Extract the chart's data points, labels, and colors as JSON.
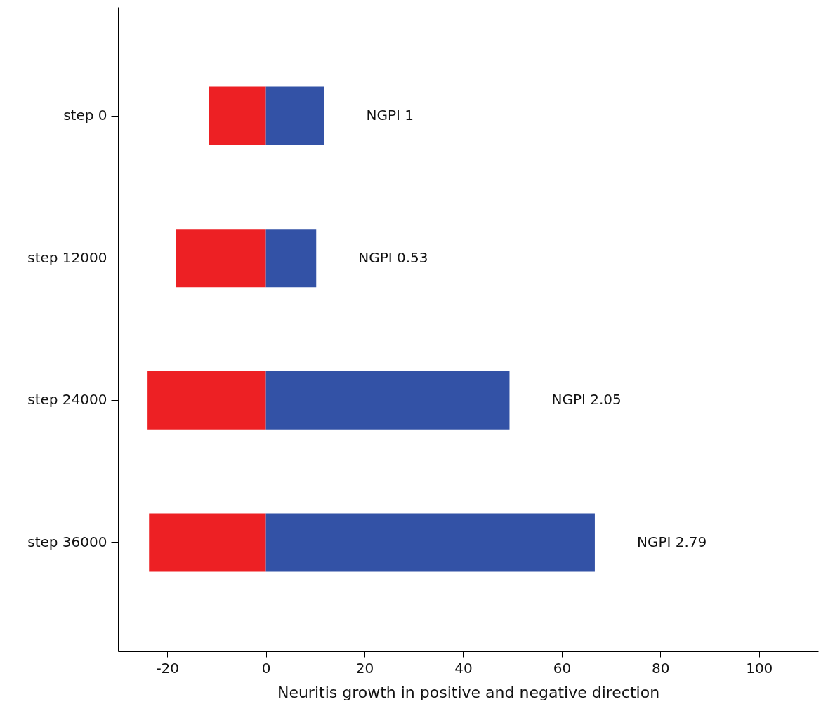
{
  "chart_data": {
    "type": "bar",
    "orientation": "horizontal",
    "stacked": true,
    "xlabel": "Neuritis growth in positive and negative direction",
    "categories": [
      "step 0",
      "step 12000",
      "step 24000",
      "step 36000"
    ],
    "series": [
      {
        "color": "#ed2024",
        "values": [
          -11.5,
          -18.3,
          -24,
          -23.7
        ]
      },
      {
        "color": "#3352a6",
        "values": [
          11.8,
          10.2,
          49.4,
          66.7
        ]
      }
    ],
    "xlim": [
      -30,
      112
    ],
    "xticks": [
      -20,
      0,
      20,
      40,
      60,
      80,
      100
    ],
    "grid": false,
    "legend": false,
    "annotations": [
      "NGPI 1",
      "NGPI 0.53",
      "NGPI 2.05",
      "NGPI 2.79"
    ]
  }
}
